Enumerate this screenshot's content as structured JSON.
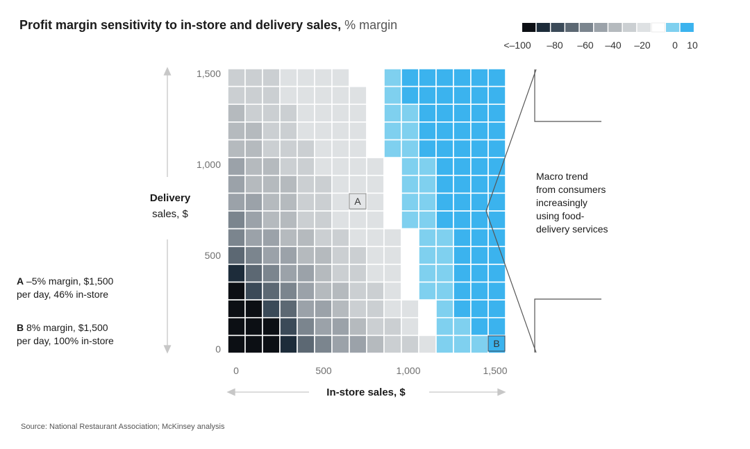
{
  "title": {
    "main": "Profit margin sensitivity to in-store and delivery sales,",
    "unit": "% margin"
  },
  "colors": {
    "scale": [
      "#0c0f14",
      "#1d2c3a",
      "#3b4a58",
      "#5c6873",
      "#7b858e",
      "#9ba2a9",
      "#b5babe",
      "#cbcfd2",
      "#dee1e3",
      "#ffffff",
      "#7fd0ef",
      "#3bb3ee"
    ]
  },
  "legend": {
    "labels": [
      "<–100",
      "–80",
      "–60",
      "–40",
      "–20",
      "0",
      "10"
    ]
  },
  "annotations": {
    "callout": [
      "Macro trend",
      "from consumers",
      "increasingly",
      "using food-",
      "delivery services"
    ],
    "marker_a": "A",
    "marker_b": "B",
    "note_a": {
      "key": "A",
      "line1": "–5% margin, $1,500",
      "line2": "per day, 46% in-store"
    },
    "note_b": {
      "key": "B",
      "line1": "8% margin, $1,500",
      "line2": "per day, 100% in-store"
    }
  },
  "source": "Source: National Restaurant Association; McKinsey analysis",
  "chart_data": {
    "type": "heatmap",
    "xlabel": "In-store sales, $",
    "ylabel_lines": [
      "Delivery",
      "sales, $"
    ],
    "x_ticks": [
      "0",
      "500",
      "1,000",
      "1,500"
    ],
    "y_ticks": [
      "0",
      "500",
      "1,000",
      "1,500"
    ],
    "xlim": [
      0,
      1500
    ],
    "ylim": [
      0,
      1500
    ],
    "color_scale_labels": [
      "<–100",
      "–80",
      "–60",
      "–40",
      "–20",
      "0",
      "10"
    ],
    "cell_step": 100,
    "rows_order": "top (delivery 1,500) to bottom (delivery 0)",
    "color_index_grid": [
      [
        7,
        7,
        7,
        8,
        8,
        8,
        8,
        9,
        9,
        10,
        11,
        11,
        11,
        11,
        11,
        11
      ],
      [
        7,
        7,
        7,
        8,
        8,
        8,
        8,
        8,
        9,
        10,
        11,
        11,
        11,
        11,
        11,
        11
      ],
      [
        6,
        7,
        7,
        7,
        8,
        8,
        8,
        8,
        9,
        10,
        10,
        11,
        11,
        11,
        11,
        11
      ],
      [
        6,
        6,
        7,
        7,
        8,
        8,
        8,
        8,
        9,
        10,
        10,
        11,
        11,
        11,
        11,
        11
      ],
      [
        6,
        6,
        7,
        7,
        7,
        8,
        8,
        8,
        9,
        10,
        10,
        11,
        11,
        11,
        11,
        11
      ],
      [
        5,
        6,
        6,
        7,
        7,
        8,
        8,
        8,
        8,
        9,
        10,
        10,
        11,
        11,
        11,
        11
      ],
      [
        5,
        6,
        6,
        6,
        7,
        7,
        8,
        8,
        8,
        9,
        10,
        10,
        11,
        11,
        11,
        11
      ],
      [
        5,
        5,
        6,
        6,
        7,
        7,
        8,
        8,
        8,
        9,
        10,
        10,
        11,
        11,
        11,
        11
      ],
      [
        4,
        5,
        6,
        6,
        7,
        7,
        8,
        8,
        8,
        9,
        10,
        10,
        11,
        11,
        11,
        11
      ],
      [
        4,
        5,
        5,
        6,
        6,
        7,
        7,
        8,
        8,
        8,
        9,
        10,
        10,
        11,
        11,
        11
      ],
      [
        3,
        4,
        5,
        5,
        6,
        6,
        7,
        7,
        8,
        8,
        9,
        10,
        10,
        11,
        11,
        11
      ],
      [
        1,
        3,
        4,
        5,
        5,
        6,
        7,
        7,
        8,
        8,
        9,
        10,
        10,
        11,
        11,
        11
      ],
      [
        0,
        2,
        3,
        4,
        5,
        6,
        6,
        7,
        7,
        8,
        9,
        10,
        10,
        11,
        11,
        11
      ],
      [
        0,
        0,
        2,
        3,
        5,
        5,
        6,
        7,
        7,
        8,
        8,
        9,
        10,
        11,
        11,
        11
      ],
      [
        0,
        0,
        0,
        2,
        4,
        5,
        5,
        6,
        7,
        7,
        8,
        9,
        10,
        10,
        11,
        11
      ],
      [
        0,
        0,
        0,
        1,
        3,
        4,
        5,
        5,
        6,
        7,
        7,
        8,
        10,
        10,
        10,
        11
      ]
    ],
    "points": [
      {
        "label": "A",
        "in_store": 700,
        "delivery": 800,
        "margin_pct": -5,
        "total_per_day": 1500,
        "in_store_share_pct": 46
      },
      {
        "label": "B",
        "in_store": 1500,
        "delivery": 0,
        "margin_pct": 8,
        "total_per_day": 1500,
        "in_store_share_pct": 100
      }
    ]
  }
}
